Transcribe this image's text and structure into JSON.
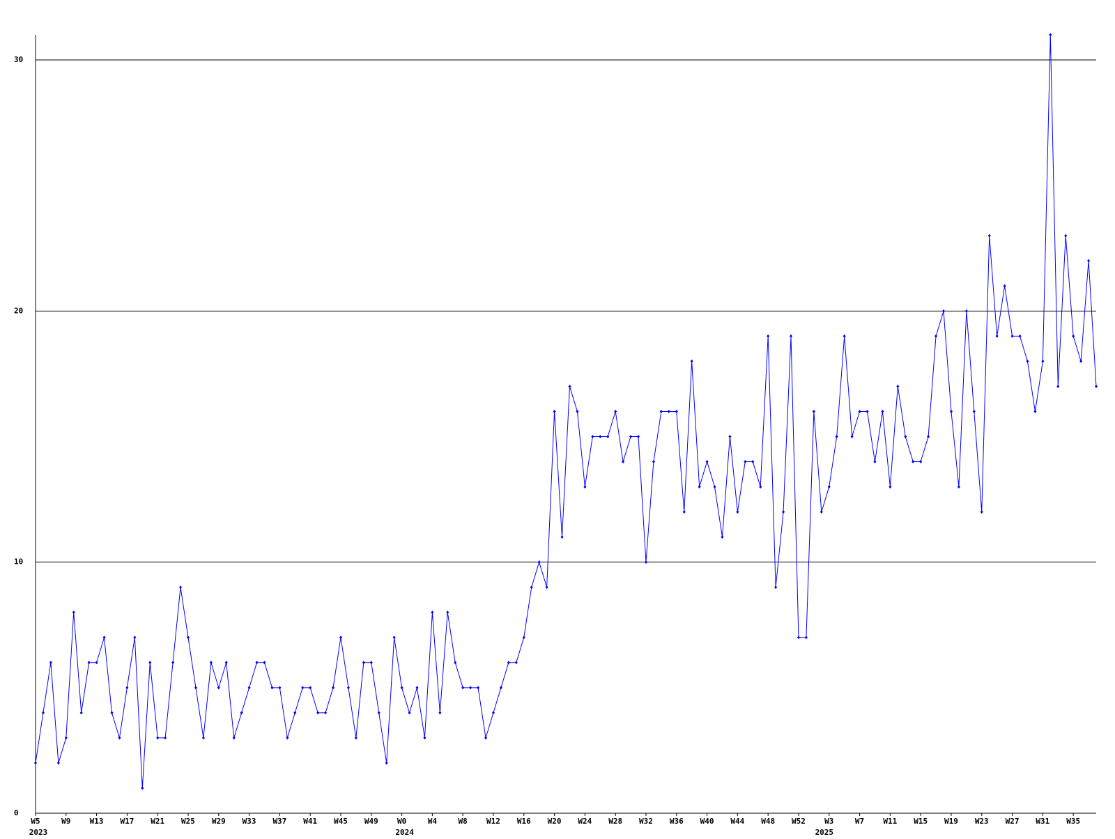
{
  "chart_data": {
    "type": "line",
    "categories": [
      "W5",
      null,
      null,
      null,
      "W9",
      null,
      null,
      null,
      "W13",
      null,
      null,
      null,
      "W17",
      null,
      null,
      null,
      "W21",
      null,
      null,
      null,
      "W25",
      null,
      null,
      null,
      "W29",
      null,
      null,
      null,
      "W33",
      null,
      null,
      null,
      "W37",
      null,
      null,
      null,
      "W41",
      null,
      null,
      null,
      "W45",
      null,
      null,
      null,
      "W49",
      null,
      null,
      null,
      "W0",
      null,
      null,
      null,
      "W4",
      null,
      null,
      null,
      "W8",
      null,
      null,
      null,
      "W12",
      null,
      null,
      null,
      "W16",
      null,
      null,
      null,
      "W20",
      null,
      null,
      null,
      "W24",
      null,
      null,
      null,
      "W28",
      null,
      null,
      null,
      "W32",
      null,
      null,
      null,
      "W36",
      null,
      null,
      null,
      "W40",
      null,
      null,
      null,
      "W44",
      null,
      null,
      null,
      "W48",
      null,
      null,
      null,
      "W52",
      null,
      null,
      null,
      "W3",
      null,
      null,
      null,
      "W7",
      null,
      null,
      null,
      "W11",
      null,
      null,
      null,
      "W15",
      null,
      null,
      null,
      "W19",
      null,
      null,
      null,
      "W23",
      null,
      null,
      null,
      "W27",
      null,
      null,
      null,
      "W31",
      null,
      null,
      null,
      "W35",
      null,
      null,
      null
    ],
    "year_labels": [
      "2023",
      null,
      null,
      null,
      null,
      null,
      null,
      null,
      null,
      null,
      null,
      null,
      null,
      null,
      null,
      null,
      null,
      null,
      null,
      null,
      null,
      null,
      null,
      null,
      null,
      null,
      null,
      null,
      null,
      null,
      null,
      null,
      null,
      null,
      null,
      null,
      null,
      null,
      null,
      null,
      null,
      null,
      null,
      null,
      null,
      null,
      null,
      null,
      "2024",
      null,
      null,
      null,
      null,
      null,
      null,
      null,
      null,
      null,
      null,
      null,
      null,
      null,
      null,
      null,
      null,
      null,
      null,
      null,
      null,
      null,
      null,
      null,
      null,
      null,
      null,
      null,
      null,
      null,
      null,
      null,
      null,
      null,
      null,
      null,
      null,
      null,
      null,
      null,
      null,
      null,
      null,
      null,
      null,
      null,
      null,
      null,
      null,
      null,
      null,
      null,
      null,
      null,
      null,
      "2025",
      null,
      null,
      null,
      null,
      null,
      null,
      null,
      null,
      null,
      null,
      null,
      null,
      null,
      null,
      null,
      null,
      null,
      null,
      null,
      null,
      null,
      null,
      null,
      null,
      null,
      null,
      null,
      null,
      null,
      null,
      null,
      null,
      null,
      null
    ],
    "series": [
      {
        "color": "#0000ff",
        "values": [
          2,
          4,
          6,
          2,
          3,
          8,
          4,
          6,
          6,
          7,
          4,
          3,
          5,
          7,
          1,
          6,
          3,
          3,
          6,
          9,
          7,
          5,
          3,
          6,
          5,
          6,
          3,
          4,
          5,
          6,
          6,
          5,
          5,
          3,
          4,
          5,
          5,
          4,
          4,
          5,
          7,
          5,
          3,
          6,
          6,
          4,
          2,
          7,
          5,
          4,
          5,
          3,
          8,
          4,
          8,
          6,
          5,
          5,
          5,
          3,
          4,
          5,
          6,
          6,
          7,
          9,
          10,
          9,
          16,
          11,
          17,
          16,
          13,
          15,
          15,
          15,
          16,
          14,
          15,
          15,
          10,
          14,
          16,
          16,
          16,
          12,
          18,
          13,
          14,
          13,
          11,
          15,
          12,
          14,
          14,
          13,
          19,
          9,
          12,
          19,
          7,
          7,
          16,
          12,
          13,
          15,
          19,
          15,
          16,
          16,
          14,
          16,
          13,
          17,
          15,
          14,
          14,
          15,
          19,
          20,
          16,
          13,
          20,
          16,
          12,
          23,
          19,
          21,
          19,
          19,
          18,
          16,
          18,
          31,
          17,
          23,
          19,
          18,
          22,
          17
        ]
      }
    ],
    "ylim": [
      0,
      31
    ],
    "yticks": [
      0,
      10,
      20,
      30
    ],
    "grid": true
  }
}
